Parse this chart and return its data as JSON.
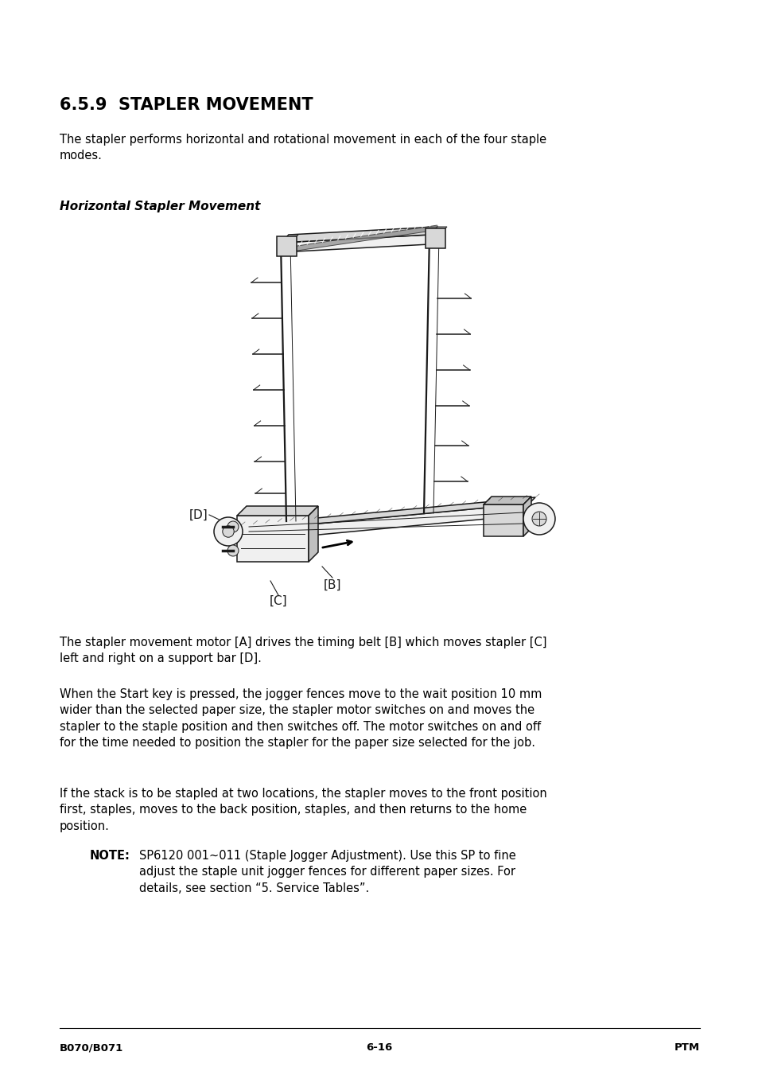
{
  "title": "6.5.9  STAPLER MOVEMENT",
  "subtitle": "Horizontal Stapler Movement",
  "body_text_1": "The stapler performs horizontal and rotational movement in each of the four staple\nmodes.",
  "body_text_2": "The stapler movement motor [A] drives the timing belt [B] which moves stapler [C]\nleft and right on a support bar [D].",
  "body_text_3": "When the Start key is pressed, the jogger fences move to the wait position 10 mm\nwider than the selected paper size, the stapler motor switches on and moves the\nstapler to the staple position and then switches off. The motor switches on and off\nfor the time needed to position the stapler for the paper size selected for the job.",
  "body_text_4": "If the stack is to be stapled at two locations, the stapler moves to the front position\nfirst, staples, moves to the back position, staples, and then returns to the home\nposition.",
  "note_label": "NOTE:",
  "note_text": "SP6120 001~011 (Staple Jogger Adjustment). Use this SP to fine\nadjust the staple unit jogger fences for different paper sizes. For\ndetails, see section “5. Service Tables”.",
  "footer_left": "B070/B071",
  "footer_center": "6-16",
  "footer_right": "PTM",
  "bg_color": "#ffffff",
  "text_color": "#000000"
}
